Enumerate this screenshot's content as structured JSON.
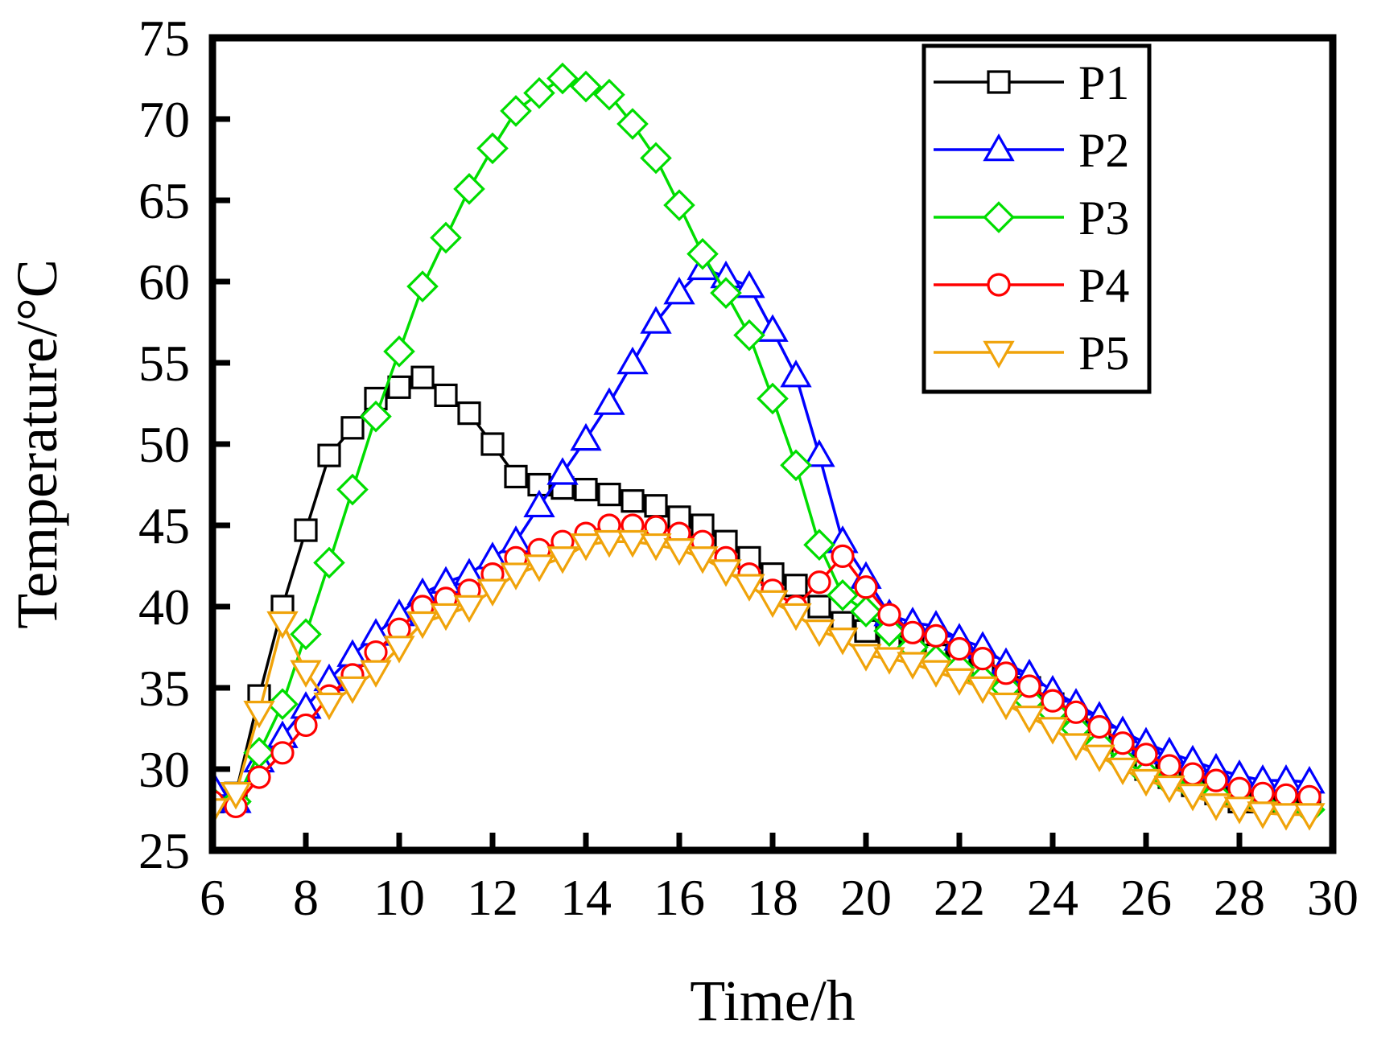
{
  "chart_data": {
    "type": "line",
    "title": "",
    "xlabel": "Time/h",
    "ylabel": "Temperature/°C",
    "xlim": [
      6,
      30
    ],
    "ylim": [
      25,
      75
    ],
    "xticks": [
      6,
      8,
      10,
      12,
      14,
      16,
      18,
      20,
      22,
      24,
      26,
      28,
      30
    ],
    "yticks": [
      25,
      30,
      35,
      40,
      45,
      50,
      55,
      60,
      65,
      70,
      75
    ],
    "grid": false,
    "legend_position": "top-right",
    "x": [
      6.0,
      6.5,
      7.0,
      7.5,
      8.0,
      8.5,
      9.0,
      9.5,
      10.0,
      10.5,
      11.0,
      11.5,
      12.0,
      12.5,
      13.0,
      13.5,
      14.0,
      14.5,
      15.0,
      15.5,
      16.0,
      16.5,
      17.0,
      17.5,
      18.0,
      18.5,
      19.0,
      19.5,
      20.0,
      20.5,
      21.0,
      21.5,
      22.0,
      22.5,
      23.0,
      23.5,
      24.0,
      24.5,
      25.0,
      25.5,
      26.0,
      26.5,
      27.0,
      27.5,
      28.0,
      28.5,
      29.0,
      29.5
    ],
    "series": [
      {
        "name": "P1",
        "color": "#000000",
        "marker": "square",
        "values": [
          28.0,
          28.5,
          34.5,
          40.0,
          44.7,
          49.3,
          51.0,
          52.8,
          53.5,
          54.1,
          53.0,
          51.9,
          50.0,
          48.0,
          47.5,
          47.3,
          47.2,
          46.9,
          46.5,
          46.2,
          45.5,
          45.0,
          44.0,
          43.0,
          42.0,
          41.3,
          40.0,
          39.0,
          38.5,
          38.0,
          37.5,
          37.0,
          36.5,
          36.0,
          35.5,
          35.0,
          34.0,
          33.0,
          32.0,
          31.0,
          30.0,
          29.5,
          29.0,
          28.5,
          28.0,
          28.0,
          28.0,
          28.0
        ]
      },
      {
        "name": "P2",
        "color": "#0000ff",
        "marker": "triangle-up",
        "values": [
          29.0,
          28.0,
          30.5,
          32.0,
          33.8,
          35.5,
          37.0,
          38.3,
          39.5,
          40.8,
          41.5,
          42.0,
          43.0,
          44.0,
          46.2,
          48.2,
          50.3,
          52.5,
          55.0,
          57.5,
          59.3,
          60.8,
          60.3,
          59.7,
          57.0,
          54.2,
          49.3,
          44.0,
          41.8,
          39.5,
          39.0,
          38.8,
          38.0,
          37.5,
          36.5,
          35.8,
          34.8,
          34.0,
          33.2,
          32.3,
          31.6,
          31.0,
          30.5,
          30.0,
          29.6,
          29.3,
          29.3,
          29.2
        ]
      },
      {
        "name": "P3",
        "color": "#00dd00",
        "marker": "diamond",
        "values": [
          28.0,
          28.0,
          31.0,
          34.0,
          38.3,
          42.7,
          47.2,
          51.7,
          55.7,
          59.7,
          62.7,
          65.7,
          68.2,
          70.5,
          71.6,
          72.5,
          72.0,
          71.5,
          69.7,
          67.6,
          64.7,
          61.7,
          59.3,
          56.7,
          52.8,
          48.7,
          43.8,
          40.7,
          39.7,
          38.5,
          37.5,
          36.7,
          36.2,
          35.5,
          35.0,
          34.2,
          33.5,
          32.5,
          31.5,
          30.5,
          29.7,
          29.2,
          28.8,
          28.4,
          28.0,
          27.8,
          27.6,
          27.5
        ]
      },
      {
        "name": "P4",
        "color": "#ff0000",
        "marker": "circle",
        "values": [
          28.0,
          27.7,
          29.5,
          31.0,
          32.7,
          34.5,
          35.8,
          37.2,
          38.6,
          40.0,
          40.5,
          41.0,
          42.0,
          43.0,
          43.5,
          44.0,
          44.5,
          45.0,
          45.0,
          44.9,
          44.5,
          44.0,
          43.0,
          42.0,
          41.0,
          40.0,
          41.5,
          43.1,
          41.2,
          39.5,
          38.4,
          38.2,
          37.4,
          36.8,
          35.9,
          35.1,
          34.2,
          33.5,
          32.6,
          31.6,
          30.9,
          30.2,
          29.7,
          29.3,
          28.8,
          28.5,
          28.4,
          28.3
        ]
      },
      {
        "name": "P5",
        "color": "#f0a30a",
        "marker": "triangle-down",
        "values": [
          27.5,
          28.5,
          33.5,
          39.0,
          36.0,
          34.0,
          35.0,
          36.0,
          37.5,
          39.0,
          39.5,
          40.0,
          41.0,
          42.0,
          42.5,
          43.0,
          43.8,
          44.0,
          44.0,
          43.8,
          43.5,
          43.0,
          42.2,
          41.3,
          40.3,
          39.5,
          38.5,
          38.0,
          37.0,
          36.8,
          36.5,
          36.0,
          35.5,
          35.0,
          34.0,
          33.2,
          32.5,
          31.5,
          30.8,
          30.0,
          29.3,
          28.9,
          28.4,
          27.8,
          27.6,
          27.3,
          27.2,
          27.2
        ]
      }
    ]
  }
}
